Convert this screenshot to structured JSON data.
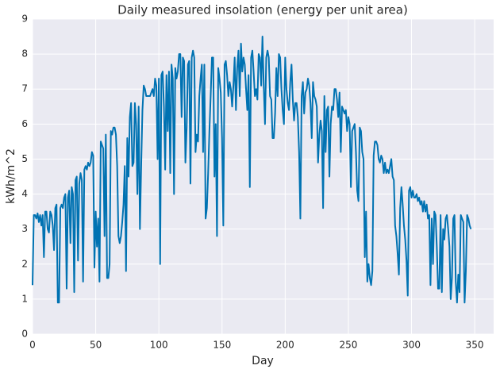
{
  "chart_data": {
    "type": "line",
    "title": "Daily measured insolation (energy per unit area)",
    "x_label": "Day",
    "y_label": "kWh/m^2",
    "color": "#0072b2",
    "grid": true,
    "xlim": [
      0,
      365
    ],
    "xticks": [
      0,
      50,
      100,
      150,
      200,
      250,
      300,
      350
    ],
    "ylim": [
      0,
      9
    ],
    "yticks": [
      0,
      1,
      2,
      3,
      4,
      5,
      6,
      7,
      8,
      9
    ],
    "values": [
      1.4,
      3.4,
      3.4,
      3.3,
      3.45,
      3.2,
      3.4,
      3.1,
      3.4,
      2.2,
      3.5,
      3.5,
      3.0,
      2.9,
      3.5,
      3.4,
      3.1,
      2.4,
      3.6,
      3.7,
      0.9,
      0.9,
      3.6,
      3.7,
      3.6,
      3.9,
      4.0,
      1.3,
      3.9,
      4.1,
      2.6,
      4.2,
      4.0,
      1.2,
      4.4,
      4.5,
      2.1,
      4.3,
      4.6,
      4.4,
      1.5,
      4.7,
      4.8,
      4.7,
      4.9,
      4.8,
      4.9,
      5.2,
      5.1,
      1.9,
      3.5,
      2.5,
      3.3,
      1.5,
      5.5,
      5.4,
      5.3,
      2.8,
      5.7,
      1.6,
      1.6,
      2.0,
      5.8,
      5.7,
      5.9,
      5.9,
      5.7,
      4.8,
      2.8,
      2.6,
      2.8,
      3.2,
      3.7,
      4.8,
      1.8,
      5.6,
      4.5,
      6.2,
      6.6,
      4.8,
      4.9,
      6.6,
      6.0,
      4.0,
      6.5,
      3.0,
      4.8,
      6.4,
      7.1,
      7.0,
      6.8,
      6.8,
      6.8,
      6.8,
      6.9,
      7.0,
      6.8,
      7.3,
      7.1,
      5.0,
      7.3,
      2.0,
      7.4,
      7.5,
      6.5,
      4.7,
      7.4,
      5.8,
      7.5,
      4.6,
      7.7,
      7.3,
      4.0,
      7.6,
      7.3,
      7.5,
      8.0,
      8.0,
      6.2,
      7.9,
      7.8,
      4.9,
      5.9,
      7.7,
      7.8,
      4.3,
      7.9,
      8.1,
      7.9,
      5.2,
      5.7,
      5.5,
      6.8,
      7.3,
      7.7,
      5.2,
      7.7,
      3.3,
      3.6,
      4.6,
      5.8,
      6.8,
      7.9,
      7.9,
      4.5,
      6.0,
      2.8,
      7.6,
      7.3,
      6.9,
      5.6,
      3.1,
      7.7,
      7.8,
      7.4,
      6.8,
      7.2,
      7.0,
      6.5,
      7.1,
      7.9,
      6.4,
      7.6,
      8.1,
      6.8,
      8.3,
      7.5,
      7.9,
      7.7,
      7.0,
      6.4,
      7.4,
      4.2,
      7.9,
      8.1,
      7.5,
      6.8,
      7.0,
      6.7,
      8.0,
      7.9,
      7.1,
      8.5,
      7.1,
      6.0,
      7.9,
      8.1,
      7.9,
      6.8,
      6.7,
      5.6,
      5.6,
      6.3,
      7.6,
      6.8,
      8.0,
      7.9,
      7.0,
      6.4,
      6.0,
      7.9,
      7.0,
      6.6,
      6.4,
      7.2,
      7.7,
      6.7,
      6.1,
      6.6,
      6.6,
      6.2,
      5.2,
      3.3,
      6.8,
      7.2,
      6.3,
      6.9,
      7.0,
      7.3,
      7.1,
      6.6,
      5.6,
      7.2,
      6.8,
      6.7,
      6.5,
      4.9,
      5.7,
      6.1,
      5.8,
      3.6,
      6.8,
      5.2,
      6.4,
      6.5,
      4.5,
      6.0,
      6.5,
      6.4,
      7.0,
      7.0,
      6.7,
      6.2,
      6.9,
      5.2,
      6.5,
      6.4,
      6.3,
      6.4,
      5.8,
      6.2,
      6.0,
      4.2,
      5.8,
      5.9,
      6.0,
      5.2,
      4.1,
      3.8,
      5.9,
      5.8,
      5.2,
      5.0,
      2.2,
      3.5,
      1.5,
      2.0,
      1.6,
      1.4,
      1.8,
      5.1,
      5.5,
      5.5,
      5.4,
      5.0,
      4.9,
      5.1,
      5.0,
      4.6,
      4.9,
      4.6,
      4.7,
      4.6,
      4.8,
      5.0,
      4.5,
      4.4,
      3.1,
      2.8,
      2.3,
      1.7,
      3.6,
      4.2,
      3.7,
      3.1,
      2.7,
      2.1,
      1.1,
      4.1,
      4.2,
      3.9,
      4.1,
      3.9,
      3.9,
      4.0,
      3.8,
      3.9,
      3.7,
      3.8,
      3.5,
      3.8,
      3.5,
      3.7,
      3.3,
      3.4,
      1.4,
      3.3,
      2.0,
      3.5,
      3.4,
      2.5,
      1.3,
      1.3,
      3.4,
      1.2,
      3.0,
      2.7,
      3.3,
      3.4,
      3.0,
      2.5,
      1.0,
      1.6,
      3.3,
      3.4,
      1.5,
      0.9,
      1.7,
      1.2,
      3.4,
      3.3,
      3.2,
      0.9,
      1.8,
      3.4,
      3.3,
      3.1,
      3.0
    ]
  }
}
